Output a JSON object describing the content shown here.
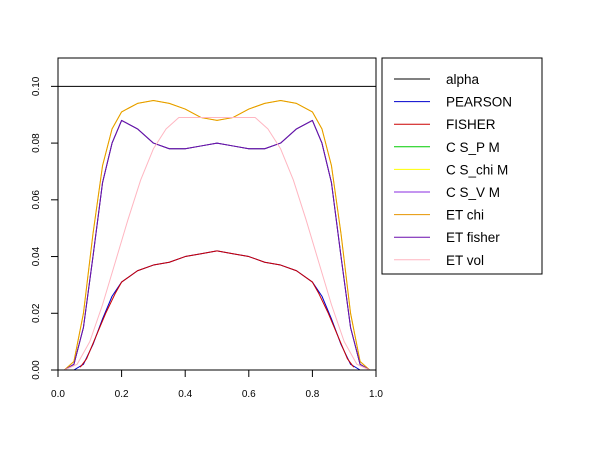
{
  "chart_data": {
    "type": "line",
    "title": "",
    "xlabel": "",
    "ylabel": "",
    "xlim": [
      0,
      1
    ],
    "ylim": [
      0,
      0.11
    ],
    "x_ticks": [
      0.0,
      0.2,
      0.4,
      0.6,
      0.8,
      1.0
    ],
    "x_tick_labels": [
      "0.0",
      "0.2",
      "0.4",
      "0.6",
      "0.8",
      "1.0"
    ],
    "y_ticks": [
      0.0,
      0.02,
      0.04,
      0.06,
      0.08,
      0.1
    ],
    "y_tick_labels": [
      "0.00",
      "0.02",
      "0.04",
      "0.06",
      "0.08",
      "0.10"
    ],
    "grid": false,
    "legend_position": "outside-right-top",
    "series": [
      {
        "name": "alpha",
        "color": "#000000",
        "x": [
          0,
          1
        ],
        "y": [
          0.1,
          0.1
        ]
      },
      {
        "name": "PEARSON",
        "color": "#0000cd",
        "x": [
          0.02,
          0.05,
          0.08,
          0.11,
          0.14,
          0.17,
          0.2,
          0.25,
          0.3,
          0.35,
          0.4,
          0.45,
          0.5,
          0.55,
          0.6,
          0.65,
          0.7,
          0.75,
          0.8,
          0.83,
          0.86,
          0.89,
          0.92,
          0.95,
          0.98
        ],
        "y": [
          0,
          0,
          0.002,
          0.009,
          0.018,
          0.026,
          0.031,
          0.035,
          0.037,
          0.038,
          0.04,
          0.041,
          0.042,
          0.041,
          0.04,
          0.038,
          0.037,
          0.035,
          0.031,
          0.026,
          0.018,
          0.009,
          0.002,
          0,
          0
        ]
      },
      {
        "name": "FISHER",
        "color": "#cc0000",
        "x": [
          0.07,
          0.09,
          0.12,
          0.15,
          0.18,
          0.2,
          0.25,
          0.3,
          0.35,
          0.4,
          0.45,
          0.5,
          0.55,
          0.6,
          0.65,
          0.7,
          0.75,
          0.8,
          0.82,
          0.85,
          0.88,
          0.91,
          0.93
        ],
        "y": [
          0.001,
          0.004,
          0.012,
          0.02,
          0.027,
          0.031,
          0.035,
          0.037,
          0.038,
          0.04,
          0.041,
          0.042,
          0.041,
          0.04,
          0.038,
          0.037,
          0.035,
          0.031,
          0.027,
          0.02,
          0.012,
          0.004,
          0.001
        ]
      },
      {
        "name": "C S_P M",
        "color": "#00cc00",
        "x": [
          0.02,
          0.05,
          0.08,
          0.11,
          0.14,
          0.17,
          0.2,
          0.25,
          0.3,
          0.35,
          0.4,
          0.45,
          0.5,
          0.55,
          0.6,
          0.65,
          0.7,
          0.75,
          0.8,
          0.83,
          0.86,
          0.89,
          0.92,
          0.95,
          0.98
        ],
        "y": [
          0,
          0.002,
          0.015,
          0.04,
          0.066,
          0.08,
          0.088,
          0.085,
          0.08,
          0.078,
          0.078,
          0.079,
          0.08,
          0.079,
          0.078,
          0.078,
          0.08,
          0.085,
          0.088,
          0.08,
          0.066,
          0.04,
          0.015,
          0.002,
          0
        ]
      },
      {
        "name": "C S_chi M",
        "color": "#ffff00",
        "x": [
          0.02,
          0.05,
          0.08,
          0.11,
          0.14,
          0.17,
          0.2,
          0.25,
          0.3,
          0.35,
          0.4,
          0.45,
          0.5,
          0.55,
          0.6,
          0.65,
          0.7,
          0.75,
          0.8,
          0.83,
          0.86,
          0.89,
          0.92,
          0.95,
          0.98
        ],
        "y": [
          0,
          0.003,
          0.02,
          0.048,
          0.072,
          0.085,
          0.091,
          0.094,
          0.095,
          0.094,
          0.092,
          0.089,
          0.088,
          0.089,
          0.092,
          0.094,
          0.095,
          0.094,
          0.091,
          0.085,
          0.072,
          0.048,
          0.02,
          0.003,
          0
        ]
      },
      {
        "name": "C S_V M",
        "color": "#8a2be2",
        "x": [
          0.02,
          0.05,
          0.08,
          0.11,
          0.14,
          0.17,
          0.2,
          0.25,
          0.3,
          0.35,
          0.4,
          0.45,
          0.5,
          0.55,
          0.6,
          0.65,
          0.7,
          0.75,
          0.8,
          0.83,
          0.86,
          0.89,
          0.92,
          0.95,
          0.98
        ],
        "y": [
          0,
          0.002,
          0.015,
          0.04,
          0.066,
          0.08,
          0.088,
          0.085,
          0.08,
          0.078,
          0.078,
          0.079,
          0.08,
          0.079,
          0.078,
          0.078,
          0.08,
          0.085,
          0.088,
          0.08,
          0.066,
          0.04,
          0.015,
          0.002,
          0
        ]
      },
      {
        "name": "ET chi",
        "color": "#e69500",
        "x": [
          0.02,
          0.05,
          0.08,
          0.11,
          0.14,
          0.17,
          0.2,
          0.25,
          0.3,
          0.35,
          0.4,
          0.45,
          0.5,
          0.55,
          0.6,
          0.65,
          0.7,
          0.75,
          0.8,
          0.83,
          0.86,
          0.89,
          0.92,
          0.95,
          0.98
        ],
        "y": [
          0,
          0.003,
          0.02,
          0.048,
          0.072,
          0.085,
          0.091,
          0.094,
          0.095,
          0.094,
          0.092,
          0.089,
          0.088,
          0.089,
          0.092,
          0.094,
          0.095,
          0.094,
          0.091,
          0.085,
          0.072,
          0.048,
          0.02,
          0.003,
          0
        ]
      },
      {
        "name": "ET fisher",
        "color": "#6a0dad",
        "x": [
          0.02,
          0.05,
          0.08,
          0.11,
          0.14,
          0.17,
          0.2,
          0.25,
          0.3,
          0.35,
          0.4,
          0.45,
          0.5,
          0.55,
          0.6,
          0.65,
          0.7,
          0.75,
          0.8,
          0.83,
          0.86,
          0.89,
          0.92,
          0.95,
          0.98
        ],
        "y": [
          0,
          0.002,
          0.015,
          0.04,
          0.066,
          0.08,
          0.088,
          0.085,
          0.08,
          0.078,
          0.078,
          0.079,
          0.08,
          0.079,
          0.078,
          0.078,
          0.08,
          0.085,
          0.088,
          0.08,
          0.066,
          0.04,
          0.015,
          0.002,
          0
        ]
      },
      {
        "name": "ET vol",
        "color": "#ffb6c1",
        "x": [
          0.02,
          0.06,
          0.1,
          0.14,
          0.18,
          0.22,
          0.26,
          0.3,
          0.34,
          0.38,
          0.42,
          0.5,
          0.58,
          0.62,
          0.66,
          0.7,
          0.74,
          0.78,
          0.82,
          0.86,
          0.9,
          0.94,
          0.98
        ],
        "y": [
          0,
          0.002,
          0.01,
          0.023,
          0.038,
          0.053,
          0.067,
          0.078,
          0.085,
          0.089,
          0.089,
          0.089,
          0.089,
          0.089,
          0.085,
          0.078,
          0.067,
          0.053,
          0.038,
          0.023,
          0.01,
          0.002,
          0
        ]
      }
    ]
  }
}
